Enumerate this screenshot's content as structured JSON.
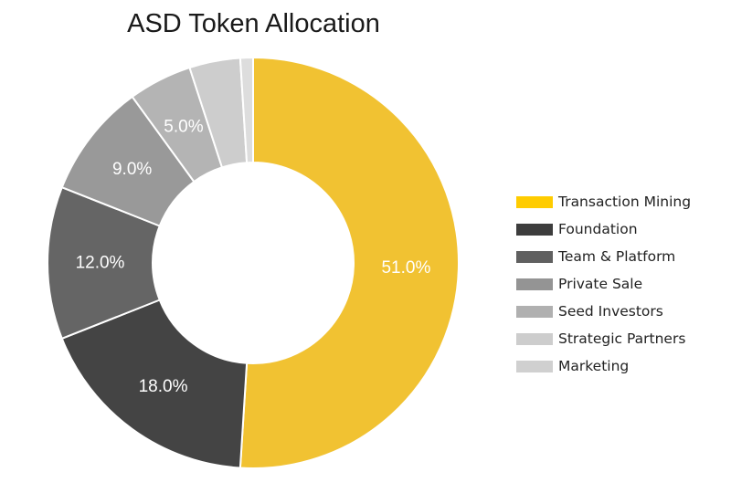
{
  "chart_data": {
    "type": "pie",
    "title": "ASD Token Allocation",
    "donut": true,
    "slices": [
      {
        "name": "Transaction Mining",
        "value": 51.0,
        "label": "51.0%",
        "color": "#F1C232",
        "legend_color": "#FFCC00"
      },
      {
        "name": "Foundation",
        "value": 18.0,
        "label": "18.0%",
        "color": "#444444",
        "legend_color": "#3D3D3D"
      },
      {
        "name": "Team & Platform",
        "value": 12.0,
        "label": "12.0%",
        "color": "#656565",
        "legend_color": "#606060"
      },
      {
        "name": "Private Sale",
        "value": 9.0,
        "label": "9.0%",
        "color": "#999999",
        "legend_color": "#949494"
      },
      {
        "name": "Seed Investors",
        "value": 5.0,
        "label": "5.0%",
        "color": "#B4B4B4",
        "legend_color": "#B0B0B0"
      },
      {
        "name": "Strategic Partners",
        "value": 4.0,
        "label": "",
        "color": "#CDCDCD",
        "legend_color": "#CDCDCD"
      },
      {
        "name": "Marketing",
        "value": 1.0,
        "label": "",
        "color": "#DDDDDD",
        "legend_color": "#D0D0D0"
      }
    ],
    "legend_position": "right"
  }
}
